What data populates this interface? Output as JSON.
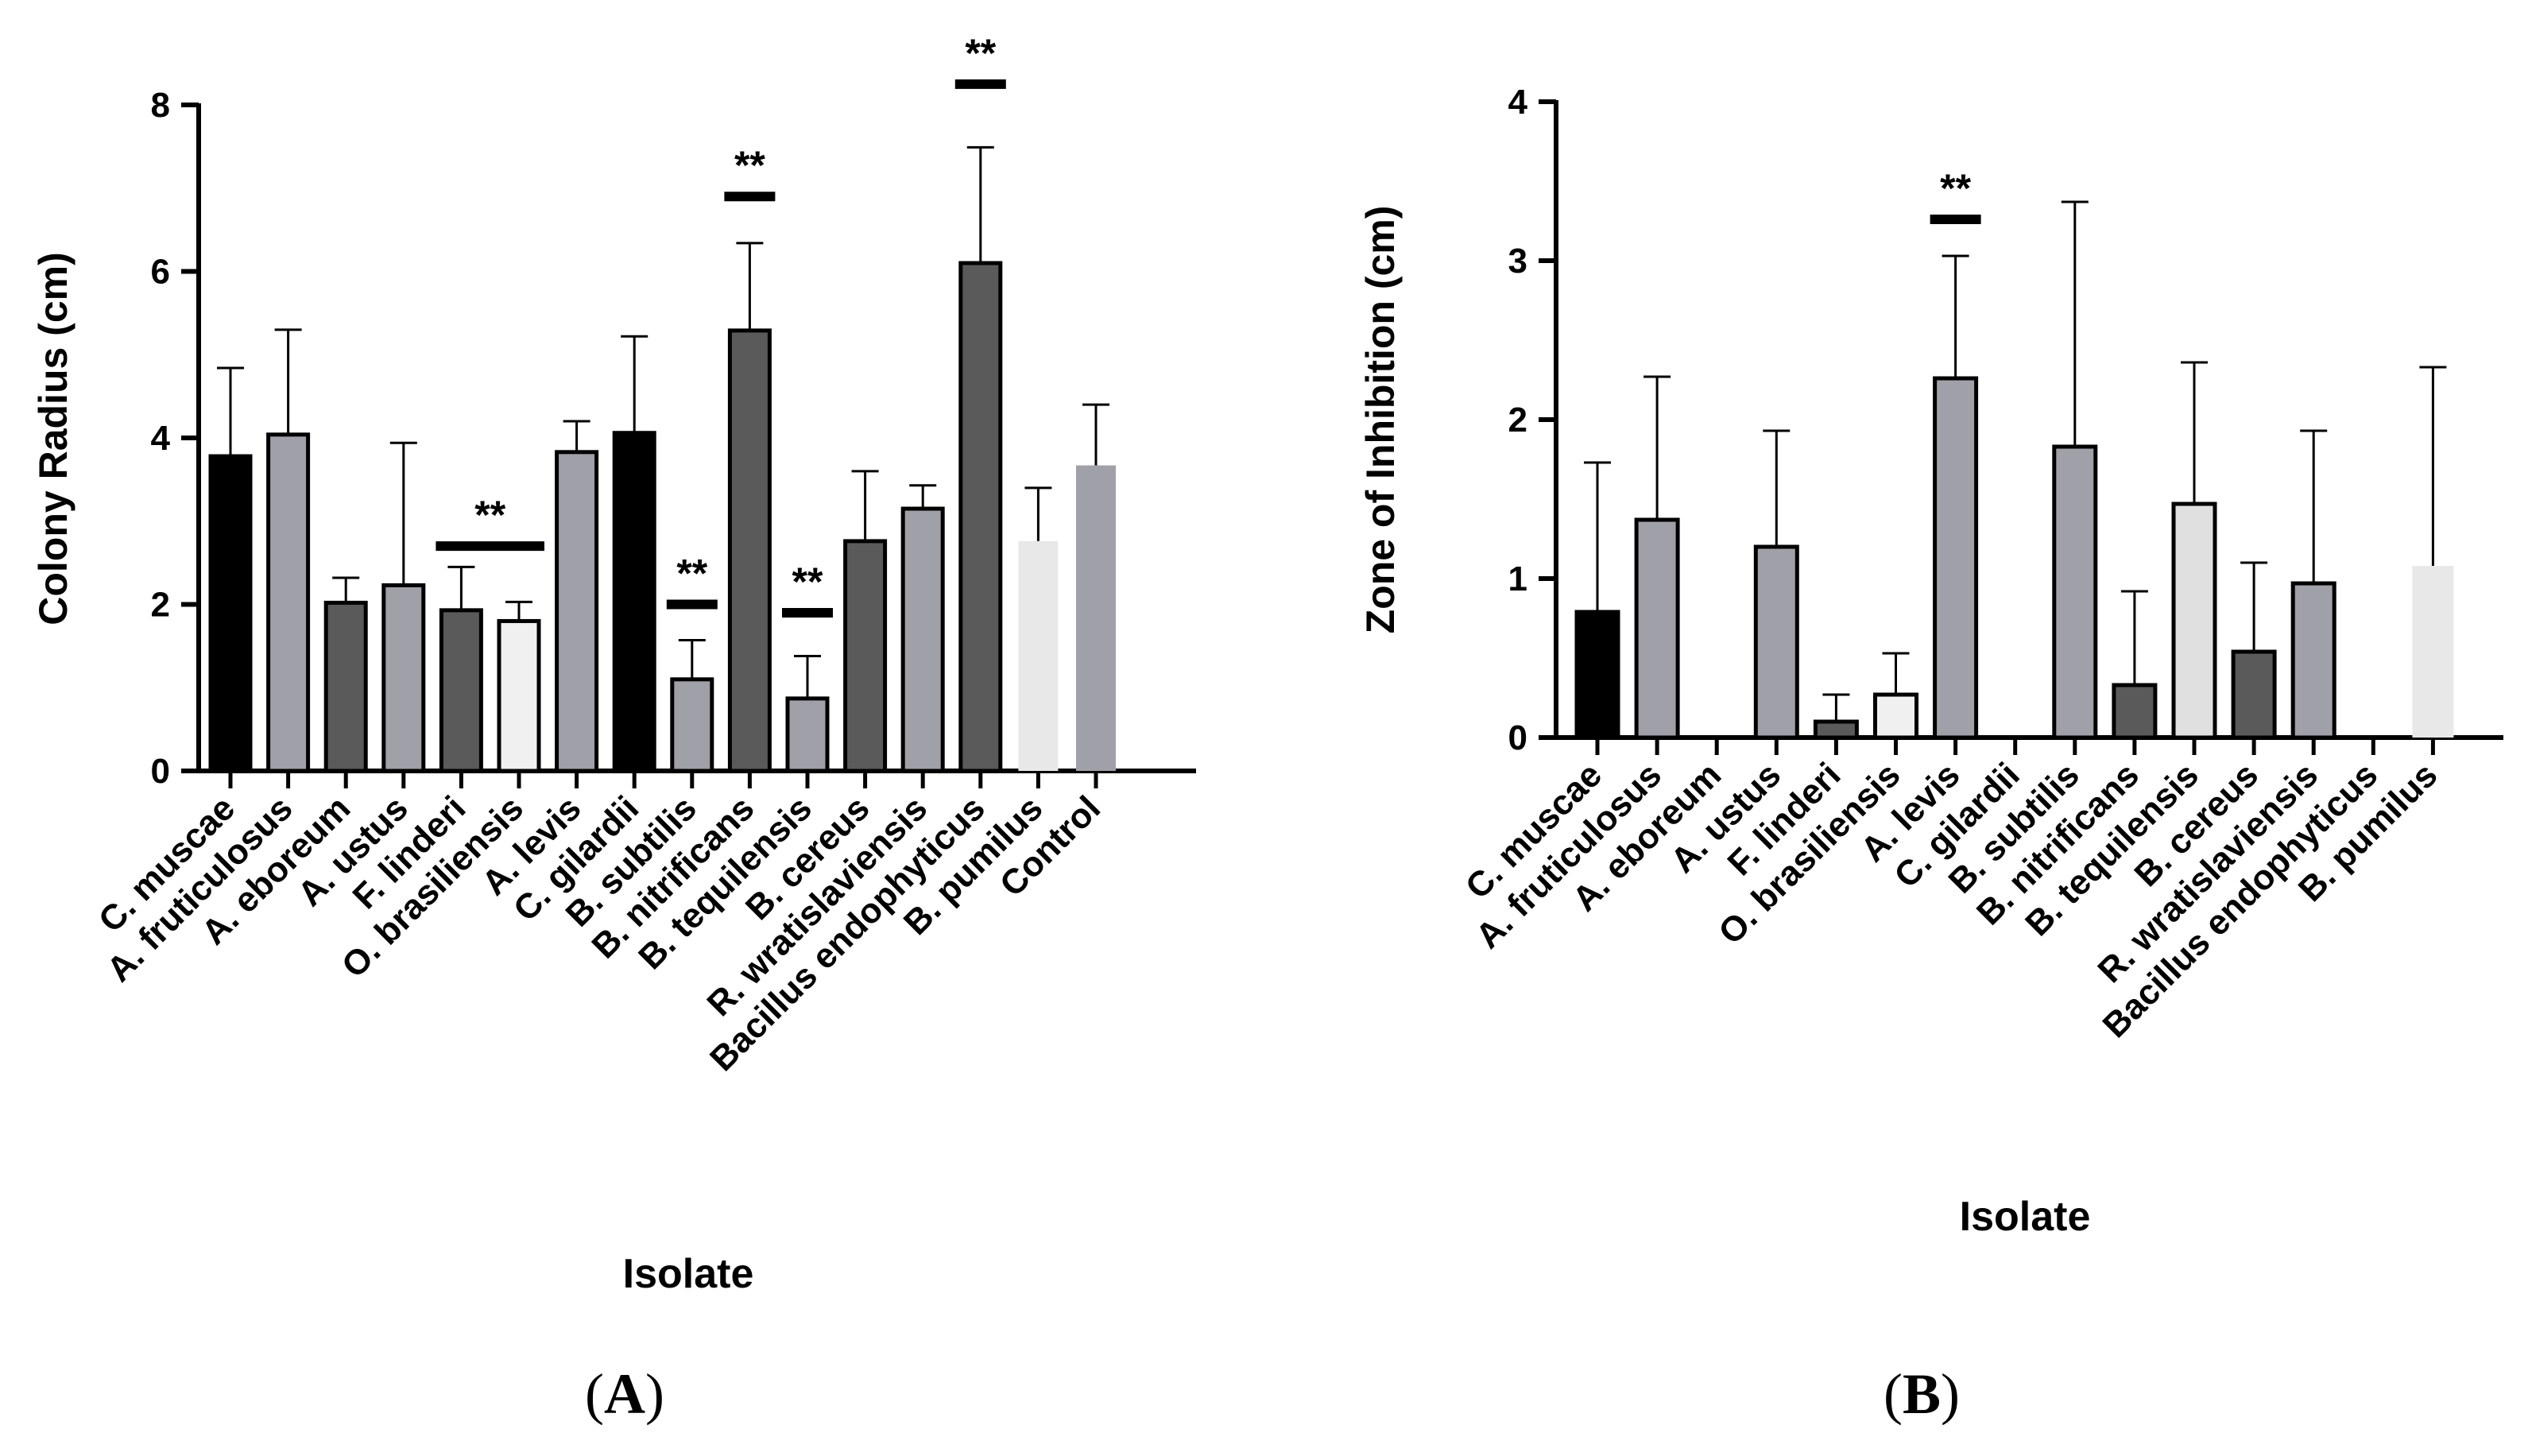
{
  "chart_data": [
    {
      "type": "bar",
      "panel_label": "(A)",
      "panel_letter": "A",
      "xlabel": "Isolate",
      "ylabel": "Colony Radius (cm)",
      "ylim": [
        0,
        8
      ],
      "yticks": [
        0,
        2,
        4,
        6,
        8
      ],
      "categories": [
        "C. muscae",
        "A. fruticulosus",
        "A. eboreum",
        "A. ustus",
        "F. linderi",
        "O. brasiliensis",
        "A. levis",
        "C. gilardii",
        "B. subtilis",
        "B. nitrificans",
        "B. tequilensis",
        "B. cereus",
        "R. wratislaviensis",
        "Bacillus endophyticus",
        "B. pumilus",
        "Control"
      ],
      "values": [
        3.78,
        4.04,
        2.02,
        2.23,
        1.93,
        1.8,
        3.83,
        4.06,
        1.1,
        5.29,
        0.87,
        2.76,
        3.15,
        6.1,
        2.76,
        3.67
      ],
      "errors": [
        1.06,
        1.26,
        0.3,
        1.71,
        0.52,
        0.23,
        0.37,
        1.16,
        0.47,
        1.05,
        0.51,
        0.84,
        0.28,
        1.39,
        0.64,
        0.73
      ],
      "colors": [
        "#000000",
        "#a0a0a8",
        "#5a5a5a",
        "#a0a0a8",
        "#5a5a5a",
        "#f0f0f0",
        "#a0a0a8",
        "#000000",
        "#a0a0a8",
        "#5a5a5a",
        "#a0a0a8",
        "#5a5a5a",
        "#a0a0a8",
        "#5a5a5a",
        "#e8e8e8",
        "#a0a0a8"
      ],
      "outlined": [
        true,
        true,
        true,
        true,
        true,
        true,
        true,
        true,
        true,
        true,
        true,
        true,
        true,
        true,
        false,
        false
      ],
      "significance": [
        {
          "label": "**",
          "from": 4,
          "to": 5,
          "y": 2.7
        },
        {
          "label": "**",
          "from": 8,
          "to": 8,
          "y": 2.0
        },
        {
          "label": "**",
          "from": 9,
          "to": 9,
          "y": 6.9
        },
        {
          "label": "**",
          "from": 10,
          "to": 10,
          "y": 1.9
        },
        {
          "label": "**",
          "from": 13,
          "to": 13,
          "y": 8.25
        }
      ]
    },
    {
      "type": "bar",
      "panel_label": "(B)",
      "panel_letter": "B",
      "xlabel": "Isolate",
      "ylabel": "Zone of Inhibition (cm)",
      "ylim": [
        0,
        4
      ],
      "yticks": [
        0,
        1,
        2,
        3,
        4
      ],
      "categories": [
        "C. muscae",
        "A. fruticulosus",
        "A. eboreum",
        "A. ustus",
        "F. linderi",
        "O. brasiliensis",
        "A. levis",
        "C. gilardii",
        "B. subtilis",
        "B. nitrificans",
        "B. tequilensis",
        "B. cereus",
        "R. wratislaviensis",
        "Bacillus endophyticus",
        "B. pumilus"
      ],
      "values": [
        0.79,
        1.37,
        0,
        1.2,
        0.1,
        0.27,
        2.26,
        0,
        1.83,
        0.33,
        1.47,
        0.54,
        0.97,
        0,
        1.08
      ],
      "errors": [
        0.94,
        0.9,
        0,
        0.73,
        0.17,
        0.26,
        0.77,
        0,
        1.54,
        0.59,
        0.89,
        0.56,
        0.96,
        0,
        1.25
      ],
      "colors": [
        "#000000",
        "#a0a0a8",
        "#5a5a5a",
        "#a0a0a8",
        "#5a5a5a",
        "#f0f0f0",
        "#a0a0a8",
        "#000000",
        "#a0a0a8",
        "#5a5a5a",
        "#e0e0e0",
        "#5a5a5a",
        "#a0a0a8",
        "#5a5a5a",
        "#e8e8e8"
      ],
      "outlined": [
        true,
        true,
        true,
        true,
        true,
        true,
        true,
        true,
        true,
        true,
        true,
        true,
        true,
        true,
        false
      ],
      "significance": [
        {
          "label": "**",
          "from": 6,
          "to": 6,
          "y": 3.26
        }
      ]
    }
  ]
}
